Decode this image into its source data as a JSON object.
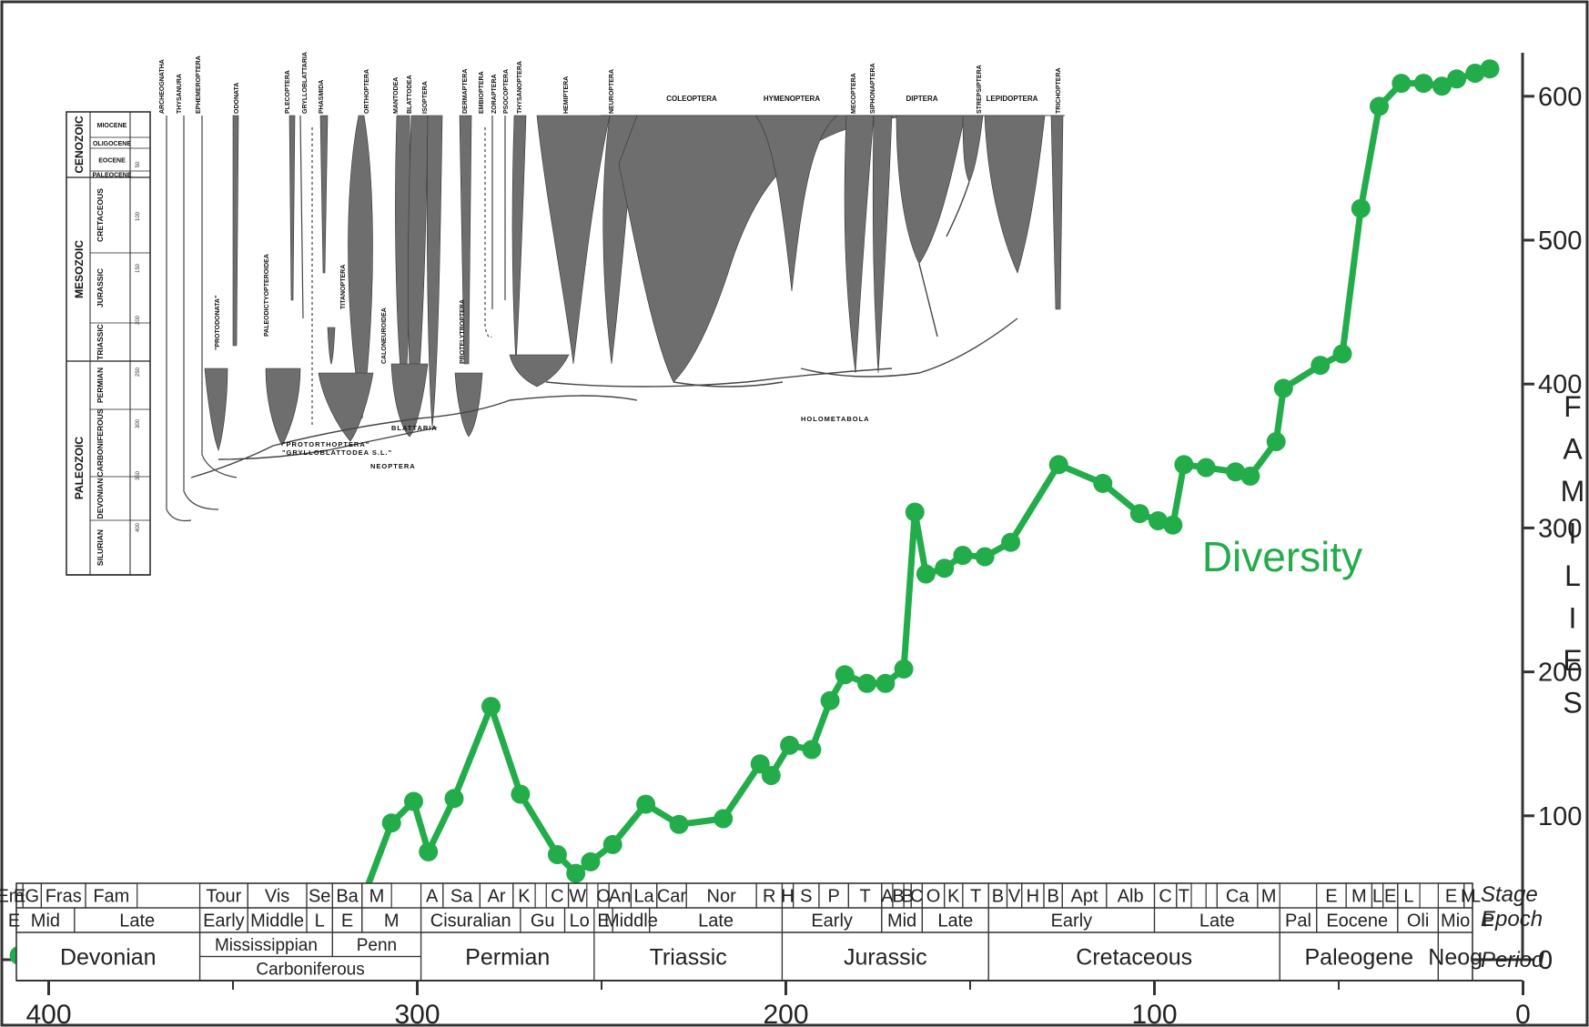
{
  "chart_data": {
    "type": "line",
    "x_unit": "Ma (millions of years ago), axis reversed",
    "xlim": [
      412,
      0
    ],
    "ylim": [
      0,
      620
    ],
    "grid": false,
    "x_ticks": [
      400,
      300,
      200,
      100,
      0
    ],
    "y_ticks": [
      0,
      100,
      200,
      300,
      400,
      500,
      600
    ],
    "ylabel_letters": [
      "F",
      "A",
      "M",
      "I",
      "L",
      "I",
      "E",
      "S"
    ],
    "annotation": "Diversity",
    "series": [
      {
        "color": "#22ac4a",
        "points": [
          [
            408,
            3
          ],
          [
            400,
            3
          ],
          [
            393,
            3
          ],
          [
            384,
            3
          ],
          [
            372,
            3
          ],
          [
            354,
            3
          ],
          [
            323,
            15
          ],
          [
            316,
            34
          ],
          [
            307,
            95
          ],
          [
            301,
            110
          ],
          [
            297,
            75
          ],
          [
            290,
            112
          ],
          [
            280,
            176
          ],
          [
            272,
            115
          ],
          [
            262,
            73
          ],
          [
            257,
            60
          ],
          [
            253,
            68
          ],
          [
            247,
            80
          ],
          [
            238,
            108
          ],
          [
            229,
            94
          ],
          [
            217,
            98
          ],
          [
            207,
            136
          ],
          [
            204,
            128
          ],
          [
            199,
            149
          ],
          [
            193,
            146
          ],
          [
            188,
            180
          ],
          [
            184,
            198
          ],
          [
            178,
            192
          ],
          [
            173,
            192
          ],
          [
            168,
            202
          ],
          [
            165,
            311
          ],
          [
            162,
            268
          ],
          [
            157,
            272
          ],
          [
            152,
            281
          ],
          [
            146,
            280
          ],
          [
            139,
            290
          ],
          [
            126,
            344
          ],
          [
            114,
            331
          ],
          [
            104,
            310
          ],
          [
            99,
            305
          ],
          [
            95,
            302
          ],
          [
            92,
            344
          ],
          [
            86,
            342
          ],
          [
            78,
            339
          ],
          [
            74,
            336
          ],
          [
            67,
            360
          ],
          [
            65,
            397
          ],
          [
            55,
            413
          ],
          [
            49,
            421
          ],
          [
            44,
            522
          ],
          [
            39,
            593
          ],
          [
            33,
            609
          ],
          [
            27,
            609
          ],
          [
            22,
            607
          ],
          [
            18,
            612
          ],
          [
            13,
            616
          ],
          [
            9,
            619
          ]
        ]
      }
    ],
    "time_scale": {
      "stage_label": "Stage",
      "epoch_label": "Epoch",
      "period_label": "Period",
      "stages": [
        {
          "t0": 419,
          "t1": 412,
          "label": "Em"
        },
        {
          "t0": 412,
          "t1": 407,
          "label": "E"
        },
        {
          "t0": 407,
          "t1": 402,
          "label": "G"
        },
        {
          "t0": 402,
          "t1": 390,
          "label": "Fras"
        },
        {
          "t0": 390,
          "t1": 376,
          "label": "Fam"
        },
        {
          "t0": 359,
          "t1": 346,
          "label": "Tour"
        },
        {
          "t0": 346,
          "t1": 330,
          "label": "Vis"
        },
        {
          "t0": 330,
          "t1": 323,
          "label": "Se"
        },
        {
          "t0": 323,
          "t1": 315,
          "label": "Ba"
        },
        {
          "t0": 315,
          "t1": 307,
          "label": "M"
        },
        {
          "t0": 299,
          "t1": 293,
          "label": "A"
        },
        {
          "t0": 293,
          "t1": 283,
          "label": "Sa"
        },
        {
          "t0": 283,
          "t1": 274,
          "label": "Ar"
        },
        {
          "t0": 274,
          "t1": 268,
          "label": "K"
        },
        {
          "t0": 265,
          "t1": 259,
          "label": "C"
        },
        {
          "t0": 259,
          "t1": 254,
          "label": "W"
        },
        {
          "t0": 251,
          "t1": 248,
          "label": "O"
        },
        {
          "t0": 248,
          "t1": 242,
          "label": "An"
        },
        {
          "t0": 242,
          "t1": 235,
          "label": "La"
        },
        {
          "t0": 235,
          "t1": 227,
          "label": "Car"
        },
        {
          "t0": 227,
          "t1": 208,
          "label": "Nor"
        },
        {
          "t0": 208,
          "t1": 201,
          "label": "R"
        },
        {
          "t0": 201,
          "t1": 198,
          "label": "H"
        },
        {
          "t0": 198,
          "t1": 191,
          "label": "S"
        },
        {
          "t0": 191,
          "t1": 183,
          "label": "P"
        },
        {
          "t0": 183,
          "t1": 174,
          "label": "T"
        },
        {
          "t0": 174,
          "t1": 171,
          "label": "A"
        },
        {
          "t0": 171,
          "t1": 168,
          "label": "B"
        },
        {
          "t0": 168,
          "t1": 166,
          "label": "B"
        },
        {
          "t0": 166,
          "t1": 163,
          "label": "C"
        },
        {
          "t0": 163,
          "t1": 157,
          "label": "O"
        },
        {
          "t0": 157,
          "t1": 152,
          "label": "K"
        },
        {
          "t0": 152,
          "t1": 145,
          "label": "T"
        },
        {
          "t0": 145,
          "t1": 140,
          "label": "B"
        },
        {
          "t0": 140,
          "t1": 136,
          "label": "V"
        },
        {
          "t0": 136,
          "t1": 130,
          "label": "H"
        },
        {
          "t0": 130,
          "t1": 125,
          "label": "B"
        },
        {
          "t0": 125,
          "t1": 113,
          "label": "Apt"
        },
        {
          "t0": 113,
          "t1": 100,
          "label": "Alb"
        },
        {
          "t0": 100,
          "t1": 94,
          "label": "C"
        },
        {
          "t0": 94,
          "t1": 90,
          "label": "T"
        },
        {
          "t0": 86,
          "t1": 83,
          "label": ""
        },
        {
          "t0": 83,
          "t1": 72,
          "label": "Ca"
        },
        {
          "t0": 72,
          "t1": 66,
          "label": "M"
        },
        {
          "t0": 56,
          "t1": 48,
          "label": "E"
        },
        {
          "t0": 48,
          "t1": 41,
          "label": "M"
        },
        {
          "t0": 41,
          "t1": 38,
          "label": "L"
        },
        {
          "t0": 38,
          "t1": 34,
          "label": "E"
        },
        {
          "t0": 34,
          "t1": 28,
          "label": "L"
        },
        {
          "t0": 23,
          "t1": 16,
          "label": "E"
        },
        {
          "t0": 16,
          "t1": 12,
          "label": "M"
        },
        {
          "t0": 12,
          "t1": 5,
          "label": "L"
        }
      ],
      "epochs": [
        {
          "t0": 419,
          "t1": 410,
          "label": "E"
        },
        {
          "t0": 410,
          "t1": 393,
          "label": "Mid"
        },
        {
          "t0": 393,
          "t1": 359,
          "label": "Late"
        },
        {
          "t0": 359,
          "t1": 346,
          "label": "Early"
        },
        {
          "t0": 346,
          "t1": 330,
          "label": "Middle"
        },
        {
          "t0": 330,
          "t1": 323,
          "label": "L"
        },
        {
          "t0": 323,
          "t1": 315,
          "label": "E"
        },
        {
          "t0": 315,
          "t1": 299,
          "label": "M"
        },
        {
          "t0": 299,
          "t1": 272,
          "label": "Cisuralian"
        },
        {
          "t0": 272,
          "t1": 260,
          "label": "Gu"
        },
        {
          "t0": 260,
          "t1": 252,
          "label": "Lo"
        },
        {
          "t0": 252,
          "t1": 247,
          "label": "E"
        },
        {
          "t0": 247,
          "t1": 237,
          "label": "Middle"
        },
        {
          "t0": 237,
          "t1": 201,
          "label": "Late"
        },
        {
          "t0": 201,
          "t1": 174,
          "label": "Early"
        },
        {
          "t0": 174,
          "t1": 163,
          "label": "Mid"
        },
        {
          "t0": 163,
          "t1": 145,
          "label": "Late"
        },
        {
          "t0": 145,
          "t1": 100,
          "label": "Early"
        },
        {
          "t0": 100,
          "t1": 66,
          "label": "Late"
        },
        {
          "t0": 66,
          "t1": 56,
          "label": "Pal"
        },
        {
          "t0": 56,
          "t1": 34,
          "label": "Eocene"
        },
        {
          "t0": 34,
          "t1": 23,
          "label": "Oli"
        },
        {
          "t0": 23,
          "t1": 5,
          "label": "Mio"
        },
        {
          "t0": 5,
          "t1": 2.6,
          "label": "P"
        }
      ],
      "periods": [
        {
          "t0": 419,
          "t1": 359,
          "label": "Devonian"
        },
        {
          "t0": 359,
          "t1": 323,
          "label": "Mississippian",
          "half": "top"
        },
        {
          "t0": 323,
          "t1": 299,
          "label": "Penn",
          "half": "top"
        },
        {
          "t0": 359,
          "t1": 299,
          "label": "Carboniferous",
          "half": "bottom"
        },
        {
          "t0": 299,
          "t1": 252,
          "label": "Permian"
        },
        {
          "t0": 252,
          "t1": 201,
          "label": "Triassic"
        },
        {
          "t0": 201,
          "t1": 145,
          "label": "Jurassic"
        },
        {
          "t0": 145,
          "t1": 66,
          "label": "Cretaceous"
        },
        {
          "t0": 66,
          "t1": 23,
          "label": "Paleogene"
        },
        {
          "t0": 23,
          "t1": 2.6,
          "label": "Neog"
        }
      ]
    },
    "inset_phylogeny": {
      "eras": [
        {
          "label": "CENOZOIC",
          "periods": [
            "MIOCENE",
            "OLIGOCENE",
            "EOCENE",
            "PALEOCENE"
          ]
        },
        {
          "label": "MESOZOIC",
          "periods": [
            "CRETACEOUS",
            "JURASSIC",
            "TRIASSIC"
          ]
        },
        {
          "label": "PALEOZOIC",
          "periods": [
            "PERMIAN",
            "CARBONIFEROUS",
            "DEVONIAN",
            "SILURIAN"
          ]
        }
      ],
      "era_ticks": [
        "50",
        "100",
        "150",
        "200",
        "250",
        "300",
        "350",
        "400"
      ],
      "orders": [
        "ARCHEOGNATHA",
        "THYSANURA",
        "EPHEMEROPTERA",
        "ODONATA",
        "PLECOPTERA",
        "GRYLLOBLATTARIA",
        "PHASMIDA",
        "ORTHOPTERA",
        "MANTODEA",
        "BLATTODEA",
        "ISOPTERA",
        "DERMAPTERA",
        "EMBIOPTERA",
        "ZORAPTERA",
        "PSOCOPTERA",
        "THYSANOPTERA",
        "HEMIPTERA",
        "NEUROPTERA",
        "COLEOPTERA",
        "HYMENOPTERA",
        "MECOPTERA",
        "SIPHONAPTERA",
        "DIPTERA",
        "STREPSIPTERA",
        "LEPIDOPTERA",
        "TRICHOPTERA"
      ],
      "internal_labels": [
        "\"PROTODONATA\"",
        "PALEODICTYOPTEROIDEA",
        "TITANOPTERA",
        "CALONEUROIDEA",
        "PROTELYTROPTERA",
        "\"PROTORTHOPTERA\"",
        "\"GRYLLOBLATTODEA S.L.\"",
        "BLATTARIA",
        "NEOPTERA",
        "HOLOMETABOLA"
      ]
    }
  }
}
